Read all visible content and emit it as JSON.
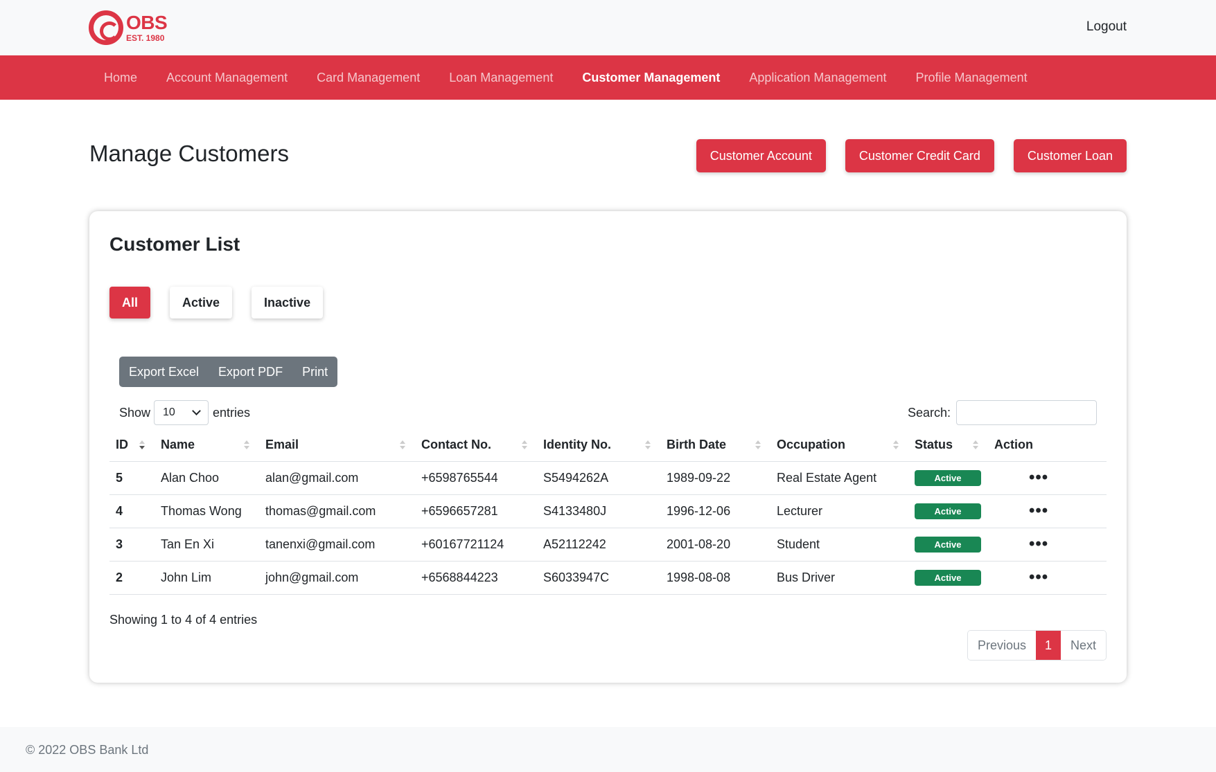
{
  "brand": {
    "name": "OBS",
    "est": "EST. 1980"
  },
  "header": {
    "logout_label": "Logout"
  },
  "nav": {
    "items": [
      "Home",
      "Account Management",
      "Card Management",
      "Loan Management",
      "Customer Management",
      "Application Management",
      "Profile Management"
    ],
    "active": "Customer Management"
  },
  "page": {
    "title": "Manage Customers",
    "buttons": [
      "Customer Account",
      "Customer Credit Card",
      "Customer Loan"
    ]
  },
  "card": {
    "title": "Customer List",
    "filters": [
      "All",
      "Active",
      "Inactive"
    ],
    "active_filter": "All",
    "export_buttons": [
      "Export Excel",
      "Export PDF",
      "Print"
    ],
    "length": {
      "prefix": "Show",
      "value": "10",
      "suffix": "entries"
    },
    "search": {
      "label": "Search:",
      "value": "",
      "placeholder": ""
    }
  },
  "table": {
    "columns": [
      "ID",
      "Name",
      "Email",
      "Contact No.",
      "Identity No.",
      "Birth Date",
      "Occupation",
      "Status",
      "Action"
    ],
    "rows": [
      {
        "id": "5",
        "name": "Alan Choo",
        "email": "alan@gmail.com",
        "contact": "+6598765544",
        "identity": "S5494262A",
        "birth": "1989-09-22",
        "occupation": "Real Estate Agent",
        "status": "Active"
      },
      {
        "id": "4",
        "name": "Thomas Wong",
        "email": "thomas@gmail.com",
        "contact": "+6596657281",
        "identity": "S4133480J",
        "birth": "1996-12-06",
        "occupation": "Lecturer",
        "status": "Active"
      },
      {
        "id": "3",
        "name": "Tan En Xi",
        "email": "tanenxi@gmail.com",
        "contact": "+60167721124",
        "identity": "A52112242",
        "birth": "2001-08-20",
        "occupation": "Student",
        "status": "Active"
      },
      {
        "id": "2",
        "name": "John Lim",
        "email": "john@gmail.com",
        "contact": "+6568844223",
        "identity": "S6033947C",
        "birth": "1998-08-08",
        "occupation": "Bus Driver",
        "status": "Active"
      }
    ],
    "action_glyph": "•••",
    "info": "Showing 1 to 4 of 4 entries"
  },
  "pagination": {
    "previous": "Previous",
    "current": "1",
    "next": "Next"
  },
  "footer": {
    "text": "© 2022 OBS Bank Ltd"
  },
  "colors": {
    "brand": "#dc3545",
    "status_active": "#198754",
    "export_group": "#6c757d"
  }
}
